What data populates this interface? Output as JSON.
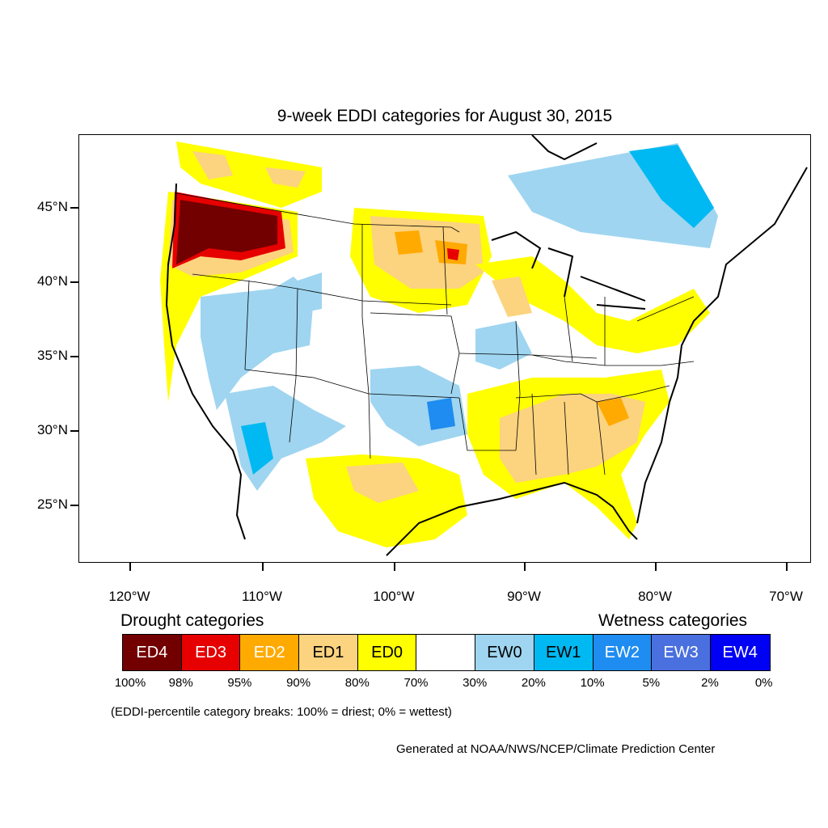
{
  "title": "9-week EDDI categories for August 30, 2015",
  "map": {
    "lat_labels": [
      "45°N",
      "40°N",
      "35°N",
      "30°N",
      "25°N"
    ],
    "lon_labels": [
      "120°W",
      "110°W",
      "100°W",
      "90°W",
      "80°W",
      "70°W"
    ]
  },
  "legend": {
    "drought_heading": "Drought categories",
    "wetness_heading": "Wetness categories",
    "categories": [
      {
        "label": "ED4",
        "color": "#730000",
        "text_color": "#ffffff"
      },
      {
        "label": "ED3",
        "color": "#e60000",
        "text_color": "#ffffff"
      },
      {
        "label": "ED2",
        "color": "#ffaa00",
        "text_color": "#ffffff"
      },
      {
        "label": "ED1",
        "color": "#fcd37f",
        "text_color": "#000000"
      },
      {
        "label": "ED0",
        "color": "#ffff00",
        "text_color": "#000000"
      },
      {
        "label": "",
        "color": "#ffffff",
        "text_color": "#000000"
      },
      {
        "label": "EW0",
        "color": "#9fd5f0",
        "text_color": "#000000"
      },
      {
        "label": "EW1",
        "color": "#00b9f2",
        "text_color": "#000000"
      },
      {
        "label": "EW2",
        "color": "#1e8cf0",
        "text_color": "#ffffff"
      },
      {
        "label": "EW3",
        "color": "#4a6fde",
        "text_color": "#ffffff"
      },
      {
        "label": "EW4",
        "color": "#0000f5",
        "text_color": "#ffffff"
      }
    ],
    "breaks": [
      "100%",
      "98%",
      "95%",
      "90%",
      "80%",
      "70%",
      "30%",
      "20%",
      "10%",
      "5%",
      "2%",
      "0%"
    ]
  },
  "note": "(EDDI-percentile category breaks: 100% = driest; 0% = wettest)",
  "credit": "Generated at NOAA/NWS/NCEP/Climate Prediction Center"
}
